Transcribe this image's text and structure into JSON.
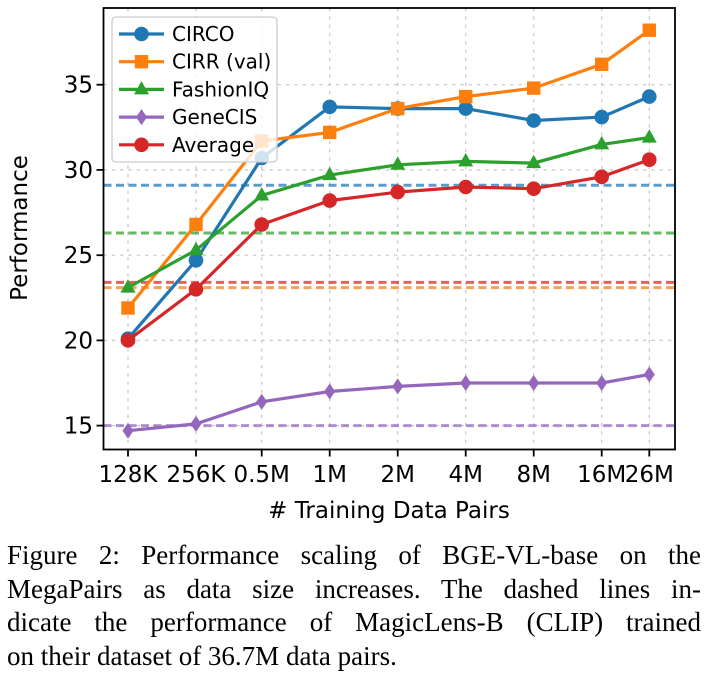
{
  "figure": {
    "caption_lines": [
      "Figure 2: Performance scaling of BGE-VL-base on the",
      "MegaPairs as data size increases. The dashed lines in-",
      "dicate the performance of MagicLens-B (CLIP) trained",
      "on their dataset of 36.7M data pairs."
    ]
  },
  "chart_data": {
    "type": "line",
    "title": "",
    "xlabel": "# Training Data Pairs",
    "ylabel": "Performance",
    "x_scale": "log",
    "x_tick_labels": [
      "128K",
      "256K",
      "0.5M",
      "1M",
      "2M",
      "4M",
      "8M",
      "16M",
      "26M"
    ],
    "x_values_millions": [
      0.128,
      0.256,
      0.5,
      1,
      2,
      4,
      8,
      16,
      26
    ],
    "y_ticks": [
      15,
      20,
      25,
      30,
      35
    ],
    "ylim": [
      13.6,
      39.5
    ],
    "grid": true,
    "legend_position": "upper left",
    "series": [
      {
        "name": "CIRCO",
        "color": "#1f77b4",
        "marker": "circle",
        "values": [
          20.1,
          24.7,
          30.7,
          33.7,
          33.6,
          33.6,
          32.9,
          33.1,
          34.3
        ]
      },
      {
        "name": "CIRR (val)",
        "color": "#ff7f0e",
        "marker": "square",
        "values": [
          21.9,
          26.8,
          31.7,
          32.2,
          33.6,
          34.3,
          34.8,
          36.2,
          38.2
        ]
      },
      {
        "name": "FashionIQ",
        "color": "#2ca02c",
        "marker": "triangle",
        "values": [
          23.1,
          25.3,
          28.5,
          29.7,
          30.3,
          30.5,
          30.4,
          31.5,
          31.9
        ]
      },
      {
        "name": "GeneCIS",
        "color": "#9467bd",
        "marker": "diamond",
        "values": [
          14.7,
          15.1,
          16.4,
          17.0,
          17.3,
          17.5,
          17.5,
          17.5,
          18.0
        ]
      },
      {
        "name": "Average",
        "color": "#d62728",
        "marker": "circle",
        "values": [
          20.0,
          23.0,
          26.8,
          28.2,
          28.7,
          29.0,
          28.9,
          29.6,
          30.6
        ]
      }
    ],
    "baselines": [
      {
        "series": "CIRCO",
        "color": "#1f77b4",
        "value": 29.1
      },
      {
        "series": "CIRR (val)",
        "color": "#ff7f0e",
        "value": 23.1
      },
      {
        "series": "FashionIQ",
        "color": "#2ca02c",
        "value": 26.3
      },
      {
        "series": "GeneCIS",
        "color": "#9467bd",
        "value": 15.0
      },
      {
        "series": "Average",
        "color": "#d62728",
        "value": 23.4
      }
    ]
  }
}
